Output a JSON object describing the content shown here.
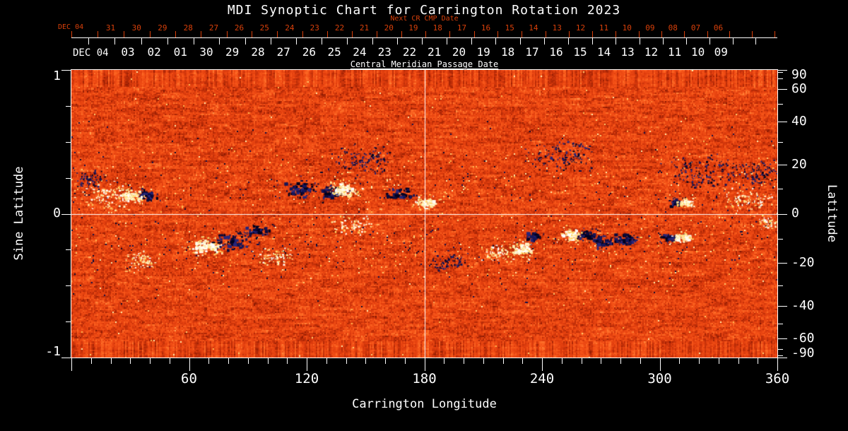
{
  "title": "MDI Synoptic Chart for Carrington Rotation 2023",
  "top_axis_next": {
    "label": "Next CR CMP Date",
    "month_label": "DEC 04",
    "ticks": [
      "31",
      "30",
      "29",
      "28",
      "27",
      "26",
      "25",
      "24",
      "23",
      "22",
      "21",
      "20",
      "19",
      "18",
      "17",
      "16",
      "15",
      "14",
      "13",
      "12",
      "11",
      "10",
      "09",
      "08",
      "07",
      "06"
    ]
  },
  "top_axis_cmp": {
    "label": "Central Meridian Passage Date",
    "month_label": "DEC 04",
    "ticks": [
      "03",
      "02",
      "01",
      "30",
      "29",
      "28",
      "27",
      "26",
      "25",
      "24",
      "23",
      "22",
      "21",
      "20",
      "19",
      "18",
      "17",
      "16",
      "15",
      "14",
      "13",
      "12",
      "11",
      "10",
      "09"
    ]
  },
  "left_axis": {
    "label": "Sine Latitude",
    "ticks": [
      "1",
      "0",
      "-1"
    ]
  },
  "right_axis": {
    "label": "Latitude",
    "ticks": [
      "90",
      "60",
      "40",
      "20",
      "0",
      "-20",
      "-40",
      "-60",
      "-90"
    ]
  },
  "bottom_axis": {
    "label": "Carrington Longitude",
    "ticks": [
      "60",
      "120",
      "180",
      "240",
      "300",
      "360"
    ]
  },
  "colors": {
    "background": "#000000",
    "axis_text": "#ffffff",
    "next_cr_axis": "#d8400a",
    "quiet_sun_low": "#6e1000",
    "quiet_sun_mid": "#e8420e",
    "quiet_sun_high": "#ffb260",
    "negative_polarity": "#10104a",
    "positive_polarity": "#fffdf0"
  },
  "chart_data": {
    "type": "heatmap",
    "title": "MDI Synoptic Chart for Carrington Rotation 2023",
    "description": "Full-disk magnetogram synoptic map of the photospheric magnetic field for Carrington rotation 2023. Quiet sun shown as mottled orange-red; dark (navy/black) patches are negative polarity flux, bright white/yellow patches are positive polarity flux, concentrated in the activity belts near +/-15 degrees latitude.",
    "xlabel": "Carrington Longitude",
    "xlim": [
      0,
      360
    ],
    "ylabel_left": "Sine Latitude",
    "ylim_sine_latitude": [
      -1,
      1
    ],
    "ylabel_right": "Latitude",
    "ylim_latitude": [
      -90,
      90
    ],
    "top_axis_next_cr_dates": [
      "DEC 04",
      "31",
      "30",
      "29",
      "28",
      "27",
      "26",
      "25",
      "24",
      "23",
      "22",
      "21",
      "20",
      "19",
      "18",
      "17",
      "16",
      "15",
      "14",
      "13",
      "12",
      "11",
      "10",
      "09",
      "08",
      "07",
      "06"
    ],
    "central_meridian_passage_dates": [
      "DEC 04",
      "03",
      "02",
      "01",
      "30",
      "29",
      "28",
      "27",
      "26",
      "25",
      "24",
      "23",
      "22",
      "21",
      "20",
      "19",
      "18",
      "17",
      "16",
      "15",
      "14",
      "13",
      "12",
      "11",
      "10",
      "09"
    ],
    "grid": false,
    "crosshair": {
      "longitude": 180,
      "sine_latitude": 0
    },
    "active_regions": [
      {
        "lon": 34,
        "sine_lat": 0.13,
        "polarity": "bipolar",
        "dark_side": "right",
        "extent_deg": 8
      },
      {
        "lon": 116,
        "sine_lat": 0.17,
        "polarity": "negative",
        "extent_deg": 9
      },
      {
        "lon": 132,
        "sine_lat": 0.15,
        "polarity": "negative",
        "extent_deg": 8
      },
      {
        "lon": 139,
        "sine_lat": 0.17,
        "polarity": "positive",
        "extent_deg": 7
      },
      {
        "lon": 143,
        "sine_lat": -0.08,
        "polarity": "positive-scatter",
        "extent_deg": 9
      },
      {
        "lon": 167,
        "sine_lat": 0.14,
        "polarity": "negative",
        "extent_deg": 7
      },
      {
        "lon": 180,
        "sine_lat": 0.08,
        "polarity": "positive",
        "extent_deg": 6
      },
      {
        "lon": 150,
        "sine_lat": 0.38,
        "polarity": "negative-scatter",
        "extent_deg": 14
      },
      {
        "lon": 69,
        "sine_lat": -0.22,
        "polarity": "positive",
        "extent_deg": 9
      },
      {
        "lon": 81,
        "sine_lat": -0.19,
        "polarity": "negative",
        "extent_deg": 10
      },
      {
        "lon": 94,
        "sine_lat": -0.11,
        "polarity": "negative",
        "extent_deg": 7
      },
      {
        "lon": 104,
        "sine_lat": -0.3,
        "polarity": "positive-scatter",
        "extent_deg": 8
      },
      {
        "lon": 229,
        "sine_lat": -0.24,
        "polarity": "positive",
        "extent_deg": 7
      },
      {
        "lon": 236,
        "sine_lat": -0.15,
        "polarity": "negative",
        "extent_deg": 6
      },
      {
        "lon": 259,
        "sine_lat": -0.14,
        "polarity": "bipolar",
        "dark_side": "right",
        "extent_deg": 7
      },
      {
        "lon": 271,
        "sine_lat": -0.19,
        "polarity": "negative",
        "extent_deg": 7
      },
      {
        "lon": 283,
        "sine_lat": -0.17,
        "polarity": "negative",
        "extent_deg": 7
      },
      {
        "lon": 308,
        "sine_lat": -0.16,
        "polarity": "bipolar",
        "dark_side": "left",
        "extent_deg": 6
      },
      {
        "lon": 310,
        "sine_lat": 0.08,
        "polarity": "bipolar",
        "dark_side": "left",
        "extent_deg": 5
      },
      {
        "lon": 322,
        "sine_lat": 0.3,
        "polarity": "negative-scatter",
        "extent_deg": 16
      },
      {
        "lon": 350,
        "sine_lat": 0.28,
        "polarity": "negative-scatter",
        "extent_deg": 12
      },
      {
        "lon": 345,
        "sine_lat": 0.1,
        "polarity": "positive-scatter",
        "extent_deg": 10
      },
      {
        "lon": 18,
        "sine_lat": 0.12,
        "polarity": "positive-scatter",
        "extent_deg": 12
      },
      {
        "lon": 10,
        "sine_lat": 0.24,
        "polarity": "negative-scatter",
        "extent_deg": 8
      },
      {
        "lon": 250,
        "sine_lat": 0.42,
        "polarity": "negative-scatter",
        "extent_deg": 14
      },
      {
        "lon": 192,
        "sine_lat": -0.33,
        "polarity": "negative-scatter",
        "extent_deg": 8
      },
      {
        "lon": 217,
        "sine_lat": -0.28,
        "polarity": "positive-scatter",
        "extent_deg": 7
      },
      {
        "lon": 35,
        "sine_lat": -0.32,
        "polarity": "positive-scatter",
        "extent_deg": 8
      },
      {
        "lon": 356,
        "sine_lat": -0.05,
        "polarity": "positive-scatter",
        "extent_deg": 6
      }
    ]
  }
}
